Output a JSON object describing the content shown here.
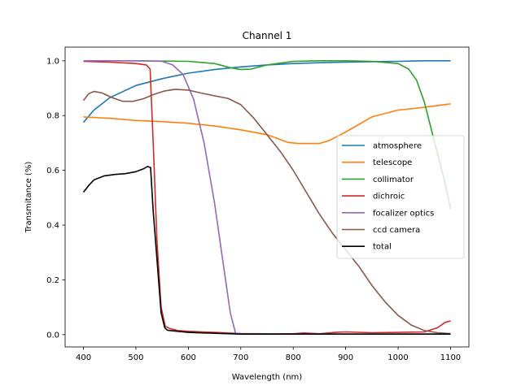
{
  "chart_data": {
    "type": "line",
    "title": "Channel 1",
    "xlabel": "Wavelength (nm)",
    "ylabel": "Transmitance (%)",
    "xlim": [
      365,
      1135
    ],
    "ylim": [
      -0.045,
      1.05
    ],
    "xticks": [
      400,
      500,
      600,
      700,
      800,
      900,
      1000,
      1100
    ],
    "yticks": [
      0.0,
      0.2,
      0.4,
      0.6,
      0.8,
      1.0
    ],
    "yticklabels": [
      "0.0",
      "0.2",
      "0.4",
      "0.6",
      "0.8",
      "1.0"
    ],
    "grid": false,
    "legend_position": "center-right",
    "series": [
      {
        "name": "atmosphere",
        "color": "#1f77b4",
        "points": [
          [
            400,
            0.775
          ],
          [
            420,
            0.82
          ],
          [
            450,
            0.865
          ],
          [
            500,
            0.91
          ],
          [
            550,
            0.935
          ],
          [
            600,
            0.955
          ],
          [
            650,
            0.968
          ],
          [
            700,
            0.978
          ],
          [
            750,
            0.985
          ],
          [
            800,
            0.99
          ],
          [
            850,
            0.993
          ],
          [
            900,
            0.995
          ],
          [
            950,
            0.997
          ],
          [
            1000,
            0.998
          ],
          [
            1050,
            1.0
          ],
          [
            1100,
            1.0
          ]
        ]
      },
      {
        "name": "telescope",
        "color": "#ff7f0e",
        "points": [
          [
            400,
            0.795
          ],
          [
            450,
            0.79
          ],
          [
            500,
            0.782
          ],
          [
            550,
            0.778
          ],
          [
            600,
            0.772
          ],
          [
            650,
            0.762
          ],
          [
            700,
            0.748
          ],
          [
            750,
            0.73
          ],
          [
            790,
            0.702
          ],
          [
            810,
            0.698
          ],
          [
            850,
            0.698
          ],
          [
            870,
            0.71
          ],
          [
            900,
            0.74
          ],
          [
            950,
            0.795
          ],
          [
            1000,
            0.82
          ],
          [
            1050,
            0.83
          ],
          [
            1100,
            0.843
          ]
        ]
      },
      {
        "name": "collimator",
        "color": "#2ca02c",
        "points": [
          [
            400,
            1.0
          ],
          [
            500,
            1.0
          ],
          [
            600,
            0.998
          ],
          [
            650,
            0.99
          ],
          [
            680,
            0.975
          ],
          [
            700,
            0.968
          ],
          [
            720,
            0.97
          ],
          [
            750,
            0.985
          ],
          [
            800,
            0.998
          ],
          [
            850,
            1.0
          ],
          [
            900,
            1.0
          ],
          [
            950,
            0.998
          ],
          [
            1000,
            0.99
          ],
          [
            1020,
            0.97
          ],
          [
            1035,
            0.93
          ],
          [
            1050,
            0.85
          ],
          [
            1070,
            0.7
          ],
          [
            1090,
            0.55
          ],
          [
            1100,
            0.46
          ]
        ]
      },
      {
        "name": "dichroic",
        "color": "#d62728",
        "points": [
          [
            400,
            0.998
          ],
          [
            450,
            0.995
          ],
          [
            500,
            0.99
          ],
          [
            520,
            0.985
          ],
          [
            527,
            0.97
          ],
          [
            533,
            0.7
          ],
          [
            540,
            0.35
          ],
          [
            548,
            0.1
          ],
          [
            556,
            0.03
          ],
          [
            565,
            0.022
          ],
          [
            580,
            0.015
          ],
          [
            600,
            0.012
          ],
          [
            650,
            0.008
          ],
          [
            700,
            0.004
          ],
          [
            750,
            0.003
          ],
          [
            800,
            0.003
          ],
          [
            820,
            0.006
          ],
          [
            850,
            0.003
          ],
          [
            880,
            0.008
          ],
          [
            900,
            0.01
          ],
          [
            950,
            0.007
          ],
          [
            1000,
            0.008
          ],
          [
            1050,
            0.01
          ],
          [
            1075,
            0.025
          ],
          [
            1090,
            0.045
          ],
          [
            1100,
            0.05
          ]
        ]
      },
      {
        "name": "focalizer optics",
        "color": "#9467bd",
        "points": [
          [
            400,
            1.0
          ],
          [
            500,
            1.0
          ],
          [
            550,
            0.998
          ],
          [
            570,
            0.985
          ],
          [
            590,
            0.95
          ],
          [
            610,
            0.86
          ],
          [
            630,
            0.7
          ],
          [
            650,
            0.48
          ],
          [
            665,
            0.28
          ],
          [
            680,
            0.08
          ],
          [
            690,
            0.005
          ],
          [
            700,
            0.003
          ],
          [
            800,
            0.002
          ],
          [
            900,
            0.002
          ],
          [
            1000,
            0.002
          ],
          [
            1100,
            0.002
          ]
        ]
      },
      {
        "name": "ccd camera",
        "color": "#8c564b",
        "points": [
          [
            400,
            0.855
          ],
          [
            410,
            0.88
          ],
          [
            420,
            0.888
          ],
          [
            435,
            0.883
          ],
          [
            455,
            0.865
          ],
          [
            475,
            0.852
          ],
          [
            495,
            0.852
          ],
          [
            515,
            0.862
          ],
          [
            535,
            0.878
          ],
          [
            555,
            0.89
          ],
          [
            575,
            0.896
          ],
          [
            600,
            0.893
          ],
          [
            625,
            0.882
          ],
          [
            650,
            0.872
          ],
          [
            675,
            0.863
          ],
          [
            700,
            0.84
          ],
          [
            725,
            0.79
          ],
          [
            750,
            0.73
          ],
          [
            775,
            0.67
          ],
          [
            800,
            0.6
          ],
          [
            825,
            0.52
          ],
          [
            850,
            0.44
          ],
          [
            875,
            0.37
          ],
          [
            900,
            0.31
          ],
          [
            925,
            0.25
          ],
          [
            950,
            0.18
          ],
          [
            975,
            0.12
          ],
          [
            1000,
            0.07
          ],
          [
            1025,
            0.035
          ],
          [
            1050,
            0.015
          ],
          [
            1075,
            0.007
          ],
          [
            1100,
            0.004
          ]
        ]
      },
      {
        "name": "total",
        "color": "#000000",
        "points": [
          [
            400,
            0.52
          ],
          [
            410,
            0.545
          ],
          [
            420,
            0.565
          ],
          [
            440,
            0.58
          ],
          [
            460,
            0.585
          ],
          [
            480,
            0.588
          ],
          [
            500,
            0.595
          ],
          [
            515,
            0.606
          ],
          [
            522,
            0.614
          ],
          [
            528,
            0.61
          ],
          [
            533,
            0.45
          ],
          [
            540,
            0.28
          ],
          [
            548,
            0.08
          ],
          [
            555,
            0.025
          ],
          [
            560,
            0.016
          ],
          [
            580,
            0.012
          ],
          [
            600,
            0.008
          ],
          [
            650,
            0.005
          ],
          [
            700,
            0.002
          ],
          [
            800,
            0.002
          ],
          [
            900,
            0.002
          ],
          [
            1000,
            0.002
          ],
          [
            1100,
            0.002
          ]
        ]
      }
    ]
  }
}
